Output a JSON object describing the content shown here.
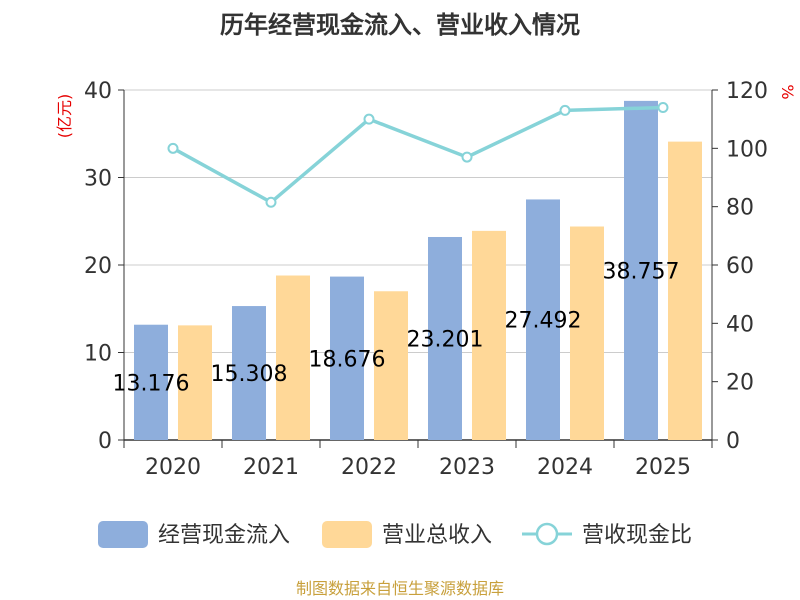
{
  "chart_data": {
    "type": "bar",
    "title": "历年经营现金流入、营业收入情况",
    "left_unit": "(亿元)",
    "right_unit": "%",
    "categories": [
      "2020",
      "2021",
      "2022",
      "2023",
      "2024",
      "2025"
    ],
    "ylim": [
      0,
      40
    ],
    "y_ticks": [
      0,
      10,
      20,
      30,
      40
    ],
    "y2lim": [
      0,
      120
    ],
    "y2_ticks": [
      0,
      20,
      40,
      60,
      80,
      100,
      120
    ],
    "grid": true,
    "legend_position": "bottom",
    "series": [
      {
        "name": "经营现金流入",
        "type": "bar",
        "axis": "left",
        "color": "#8eaedc",
        "values": [
          13.176,
          15.308,
          18.676,
          23.201,
          27.492,
          38.757
        ],
        "labels": [
          "13.176",
          "15.308",
          "18.676",
          "23.201",
          "27.492",
          "38.757"
        ]
      },
      {
        "name": "营业总收入",
        "type": "bar",
        "axis": "left",
        "color": "#ffd898",
        "values": [
          13.1,
          18.8,
          17.0,
          23.9,
          24.4,
          34.1
        ]
      },
      {
        "name": "营收现金比",
        "type": "line",
        "axis": "right",
        "color": "#86d3d8",
        "values": [
          100,
          81.5,
          110,
          97,
          113,
          114
        ]
      }
    ],
    "source": "制图数据来自恒生聚源数据库"
  }
}
